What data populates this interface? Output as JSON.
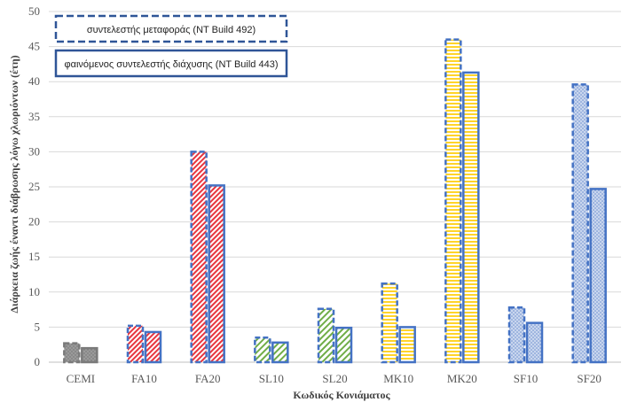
{
  "chart_data": {
    "type": "bar",
    "categories": [
      "CEMI",
      "FA10",
      "FA20",
      "SL10",
      "SL20",
      "MK10",
      "MK20",
      "SF10",
      "SF20"
    ],
    "series": [
      {
        "name": "συντελεστής μεταφοράς (NT Build 492)",
        "values": [
          2.7,
          5.2,
          30.0,
          3.5,
          7.6,
          11.2,
          46.0,
          7.8,
          39.6
        ]
      },
      {
        "name": "φαινόμενος συντελεστής διάχυσης (NT Build 443)",
        "values": [
          2.0,
          4.3,
          25.2,
          2.8,
          4.9,
          5.0,
          41.3,
          5.6,
          24.7
        ]
      }
    ],
    "xlabel": "Κωδικός Κονιάματος",
    "ylabel": "Διάρκεια ζωής έναντι διάβρωσης λόγω χλωριόντων (έτη)",
    "ylim": [
      0,
      50
    ],
    "yticks": [
      0,
      5,
      10,
      15,
      20,
      25,
      30,
      35,
      40,
      45,
      50
    ],
    "grid": true,
    "legend_position": "top-left",
    "colors": {
      "series_edge": "#4472c4",
      "CEMI": "#8c8c8c",
      "FA": "#e8353e",
      "SL": "#70ad47",
      "MK": "#ffd42a",
      "SF": "#4472c4",
      "grid": "#d9d9d9"
    }
  }
}
